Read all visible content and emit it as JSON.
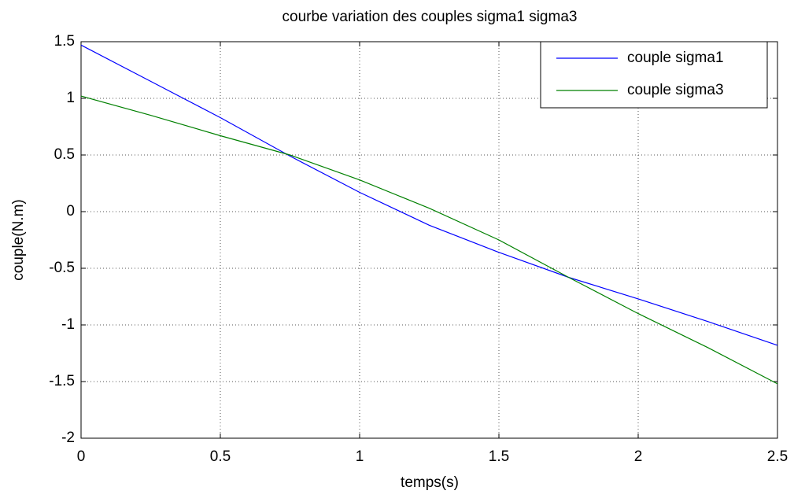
{
  "chart_data": {
    "type": "line",
    "title": "courbe variation des couples sigma1 sigma3",
    "xlabel": "temps(s)",
    "ylabel": "couple(N.m)",
    "x": [
      0,
      0.25,
      0.5,
      0.75,
      1,
      1.25,
      1.5,
      1.75,
      2,
      2.25,
      2.5
    ],
    "series": [
      {
        "name": "couple sigma1",
        "color": "#0000ff",
        "values": [
          1.47,
          1.15,
          0.83,
          0.49,
          0.17,
          -0.12,
          -0.36,
          -0.58,
          -0.77,
          -0.97,
          -1.18
        ]
      },
      {
        "name": "couple sigma3",
        "color": "#008000",
        "values": [
          1.02,
          0.85,
          0.67,
          0.5,
          0.28,
          0.03,
          -0.25,
          -0.58,
          -0.9,
          -1.2,
          -1.52
        ]
      }
    ],
    "xlim": [
      0,
      2.5
    ],
    "xticks": [
      0,
      0.5,
      1,
      1.5,
      2,
      2.5
    ],
    "ylim": [
      -2,
      1.5
    ],
    "yticks": [
      -2,
      -1.5,
      -1,
      -0.5,
      0,
      0.5,
      1,
      1.5
    ],
    "grid": true,
    "legend": "top-right"
  }
}
